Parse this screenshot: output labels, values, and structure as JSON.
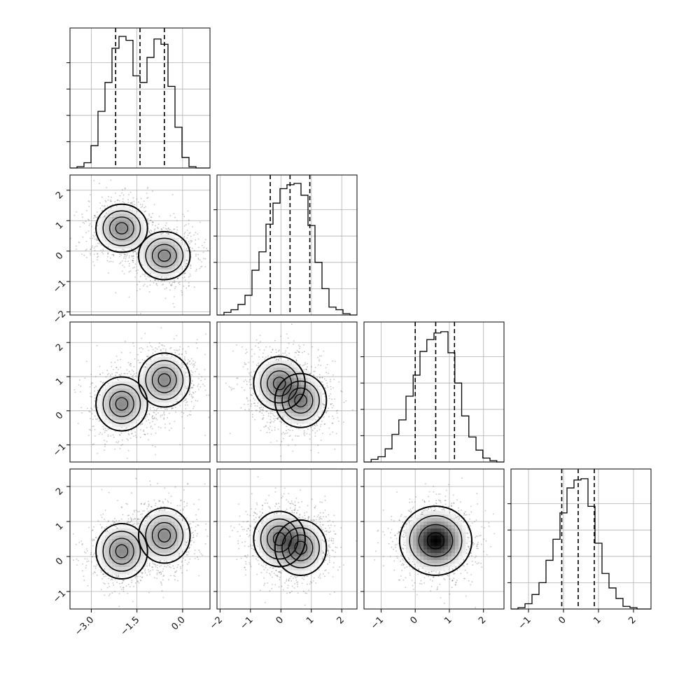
{
  "chart_data": {
    "type": "corner",
    "n_params": 4,
    "axes": [
      {
        "range": [
          -3.7,
          0.9
        ],
        "ticks": [
          -3.0,
          -1.5,
          0.0
        ],
        "tick_labels": [
          "−3.0",
          "−1.5",
          "0.0"
        ]
      },
      {
        "range": [
          -2.1,
          2.5
        ],
        "ticks": [
          -2,
          -1,
          0,
          1,
          2
        ],
        "tick_labels": [
          "−2",
          "−1",
          "0",
          "1",
          "2"
        ]
      },
      {
        "range": [
          -1.5,
          2.6
        ],
        "ticks": [
          -1,
          0,
          1,
          2
        ],
        "tick_labels": [
          "−1",
          "0",
          "1",
          "2"
        ]
      },
      {
        "range": [
          -1.5,
          2.5
        ],
        "ticks": [
          -1,
          0,
          1,
          2
        ],
        "tick_labels": [
          "−1",
          "0",
          "1",
          "2"
        ]
      }
    ],
    "histograms": [
      {
        "quantiles": [
          -2.2,
          -1.4,
          -0.6
        ],
        "edges": [
          -3.7,
          -3.47,
          -3.24,
          -3.01,
          -2.78,
          -2.55,
          -2.32,
          -2.09,
          -1.86,
          -1.63,
          -1.4,
          -1.17,
          -0.94,
          -0.71,
          -0.48,
          -0.25,
          -0.02,
          0.21,
          0.44,
          0.67,
          0.9
        ],
        "values": [
          0,
          0.01,
          0.04,
          0.17,
          0.43,
          0.65,
          0.91,
          1.0,
          0.97,
          0.7,
          0.65,
          0.84,
          0.98,
          0.94,
          0.62,
          0.31,
          0.08,
          0.01,
          0,
          0
        ]
      },
      {
        "quantiles": [
          -0.35,
          0.3,
          0.95
        ],
        "edges": [
          -2.1,
          -1.87,
          -1.64,
          -1.41,
          -1.18,
          -0.95,
          -0.72,
          -0.49,
          -0.26,
          -0.03,
          0.2,
          0.43,
          0.66,
          0.89,
          1.12,
          1.35,
          1.58,
          1.81,
          2.04,
          2.27,
          2.5
        ],
        "values": [
          0,
          0.02,
          0.04,
          0.08,
          0.15,
          0.34,
          0.48,
          0.69,
          0.85,
          0.96,
          0.99,
          1.0,
          0.91,
          0.68,
          0.4,
          0.2,
          0.06,
          0.04,
          0.01,
          0
        ]
      },
      {
        "quantiles": [
          0.0,
          0.6,
          1.15
        ],
        "edges": [
          -1.5,
          -1.29,
          -1.09,
          -0.88,
          -0.68,
          -0.48,
          -0.27,
          -0.06,
          0.14,
          0.34,
          0.55,
          0.75,
          0.96,
          1.16,
          1.36,
          1.57,
          1.78,
          1.98,
          2.19,
          2.39,
          2.6
        ],
        "values": [
          0,
          0.02,
          0.04,
          0.1,
          0.21,
          0.32,
          0.5,
          0.66,
          0.84,
          0.93,
          0.98,
          0.99,
          0.83,
          0.6,
          0.35,
          0.19,
          0.09,
          0.03,
          0.01,
          0
        ]
      },
      {
        "quantiles": [
          -0.05,
          0.42,
          0.88
        ],
        "edges": [
          -1.5,
          -1.3,
          -1.1,
          -0.9,
          -0.7,
          -0.5,
          -0.3,
          -0.1,
          0.1,
          0.3,
          0.5,
          0.7,
          0.9,
          1.1,
          1.3,
          1.5,
          1.7,
          1.9,
          2.1,
          2.3,
          2.5
        ],
        "values": [
          0,
          0.01,
          0.04,
          0.11,
          0.2,
          0.37,
          0.53,
          0.73,
          0.92,
          0.98,
          0.99,
          0.78,
          0.5,
          0.27,
          0.16,
          0.08,
          0.02,
          0.01,
          0,
          0
        ]
      }
    ],
    "scatter_pairs": [
      {
        "x_param": 0,
        "y_param": 1,
        "modes": [
          {
            "mean": [
              -2.0,
              0.75
            ],
            "weight": 1
          },
          {
            "mean": [
              -0.6,
              -0.15
            ],
            "weight": 1
          }
        ]
      },
      {
        "x_param": 0,
        "y_param": 2,
        "modes": [
          {
            "mean": [
              -2.0,
              0.2
            ],
            "weight": 1
          },
          {
            "mean": [
              -0.6,
              0.9
            ],
            "weight": 1
          }
        ]
      },
      {
        "x_param": 1,
        "y_param": 2,
        "modes": [
          {
            "mean": [
              -0.05,
              0.8
            ],
            "weight": 1
          },
          {
            "mean": [
              0.65,
              0.3
            ],
            "weight": 1
          }
        ]
      },
      {
        "x_param": 0,
        "y_param": 3,
        "modes": [
          {
            "mean": [
              -2.0,
              0.15
            ],
            "weight": 1
          },
          {
            "mean": [
              -0.6,
              0.6
            ],
            "weight": 1
          }
        ]
      },
      {
        "x_param": 1,
        "y_param": 3,
        "modes": [
          {
            "mean": [
              -0.05,
              0.5
            ],
            "weight": 1
          },
          {
            "mean": [
              0.65,
              0.25
            ],
            "weight": 1
          }
        ]
      },
      {
        "x_param": 2,
        "y_param": 3,
        "modes": [
          {
            "mean": [
              0.6,
              0.45
            ],
            "weight": 1
          }
        ]
      }
    ],
    "grid": true,
    "title": "",
    "xlabel": "",
    "ylabel": ""
  },
  "colors": {
    "line": "#000000",
    "grid": "#b0b0b0",
    "points": "#555555",
    "density_dark": "#000000",
    "density_light": "#ffffff"
  }
}
